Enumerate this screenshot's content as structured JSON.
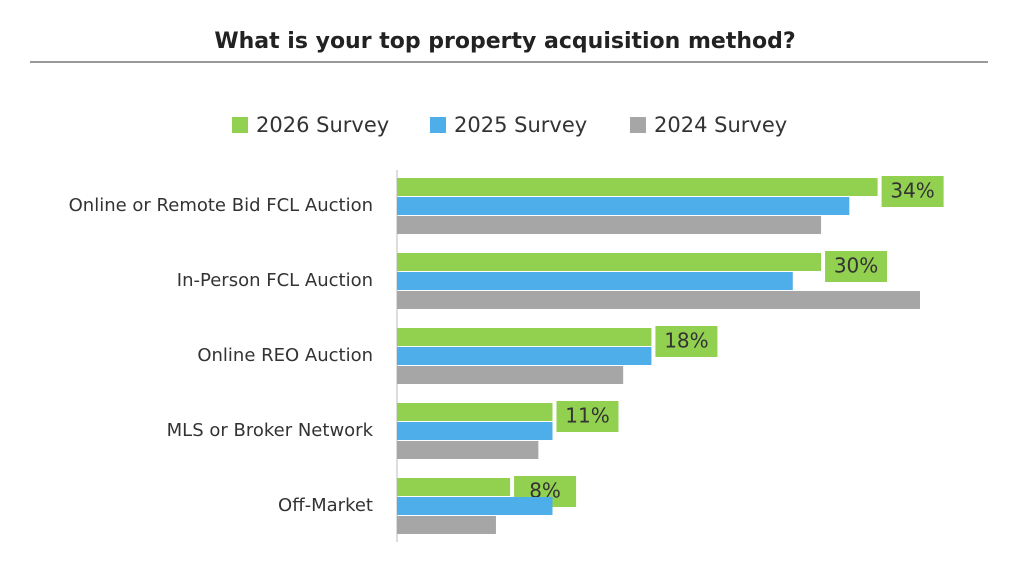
{
  "chart_data": {
    "type": "hbar",
    "title": "What is your top property acquisition method?",
    "categories": [
      "Online or Remote Bid FCL Auction",
      "In-Person FCL Auction",
      "Online REO Auction",
      "MLS or Broker Network",
      "Off-Market"
    ],
    "series": [
      {
        "name": "2026 Survey",
        "color": "#92d050",
        "values": [
          34,
          30,
          18,
          11,
          8
        ],
        "value_labels": [
          "34%",
          "30%",
          "18%",
          "11%",
          "8%"
        ]
      },
      {
        "name": "2025 Survey",
        "color": "#4daeea",
        "values": [
          32,
          28,
          18,
          11,
          11
        ]
      },
      {
        "name": "2024 Survey",
        "color": "#a6a6a6",
        "values": [
          30,
          37,
          16,
          10,
          7
        ]
      }
    ]
  }
}
